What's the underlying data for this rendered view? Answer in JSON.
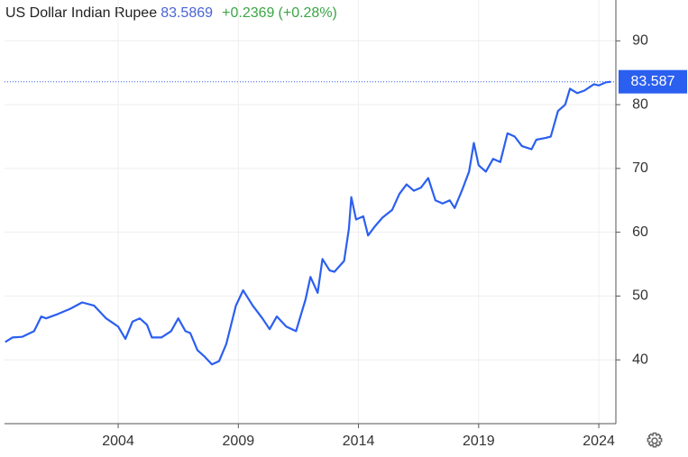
{
  "chart_data": {
    "type": "line",
    "title": "US Dollar Indian Rupee",
    "price": "83.5869",
    "change": "+0.2369",
    "change_pct": "(+0.28%)",
    "last_value": 83.587,
    "color": "#2b5ff0",
    "x": [
      1999.3,
      1999.6,
      2000.0,
      2000.5,
      2000.8,
      2001.0,
      2001.5,
      2002.0,
      2002.5,
      2003.0,
      2003.5,
      2004.0,
      2004.3,
      2004.6,
      2004.9,
      2005.2,
      2005.4,
      2005.8,
      2006.2,
      2006.5,
      2006.8,
      2007.0,
      2007.3,
      2007.6,
      2007.9,
      2008.2,
      2008.5,
      2008.9,
      2009.2,
      2009.6,
      2010.0,
      2010.3,
      2010.6,
      2011.0,
      2011.4,
      2011.8,
      2012.0,
      2012.3,
      2012.5,
      2012.8,
      2013.0,
      2013.4,
      2013.6,
      2013.7,
      2013.9,
      2014.2,
      2014.4,
      2014.7,
      2015.0,
      2015.4,
      2015.7,
      2016.0,
      2016.3,
      2016.6,
      2016.9,
      2017.2,
      2017.5,
      2017.8,
      2018.0,
      2018.3,
      2018.6,
      2018.8,
      2019.0,
      2019.3,
      2019.6,
      2019.9,
      2020.2,
      2020.5,
      2020.8,
      2021.2,
      2021.4,
      2021.8,
      2022.0,
      2022.3,
      2022.6,
      2022.8,
      2023.1,
      2023.4,
      2023.8,
      2024.0,
      2024.3,
      2024.5
    ],
    "values": [
      42.8,
      43.5,
      43.6,
      44.5,
      46.8,
      46.5,
      47.2,
      48.0,
      49.0,
      48.5,
      46.5,
      45.2,
      43.3,
      46.0,
      46.5,
      45.5,
      43.5,
      43.5,
      44.5,
      46.5,
      44.5,
      44.2,
      41.5,
      40.5,
      39.3,
      39.8,
      42.5,
      48.5,
      50.9,
      48.5,
      46.5,
      44.8,
      46.8,
      45.2,
      44.5,
      49.5,
      53.0,
      50.5,
      55.8,
      54.0,
      53.8,
      55.5,
      60.5,
      65.5,
      62.0,
      62.5,
      59.5,
      61.0,
      62.3,
      63.5,
      66.0,
      67.5,
      66.5,
      67.0,
      68.5,
      65.0,
      64.5,
      65.0,
      63.8,
      66.5,
      69.5,
      74.0,
      70.5,
      69.5,
      71.5,
      71.0,
      75.5,
      75.0,
      73.5,
      73.0,
      74.5,
      74.8,
      75.0,
      79.0,
      80.0,
      82.5,
      81.8,
      82.2,
      83.2,
      83.0,
      83.5,
      83.587
    ],
    "xlim": [
      1999.27,
      2024.71
    ],
    "xticks": [
      2004,
      2009,
      2014,
      2019,
      2024
    ],
    "ylim": [
      30,
      96.4
    ],
    "yticks": [
      40,
      50,
      60,
      70,
      80,
      90
    ],
    "grid": true
  }
}
